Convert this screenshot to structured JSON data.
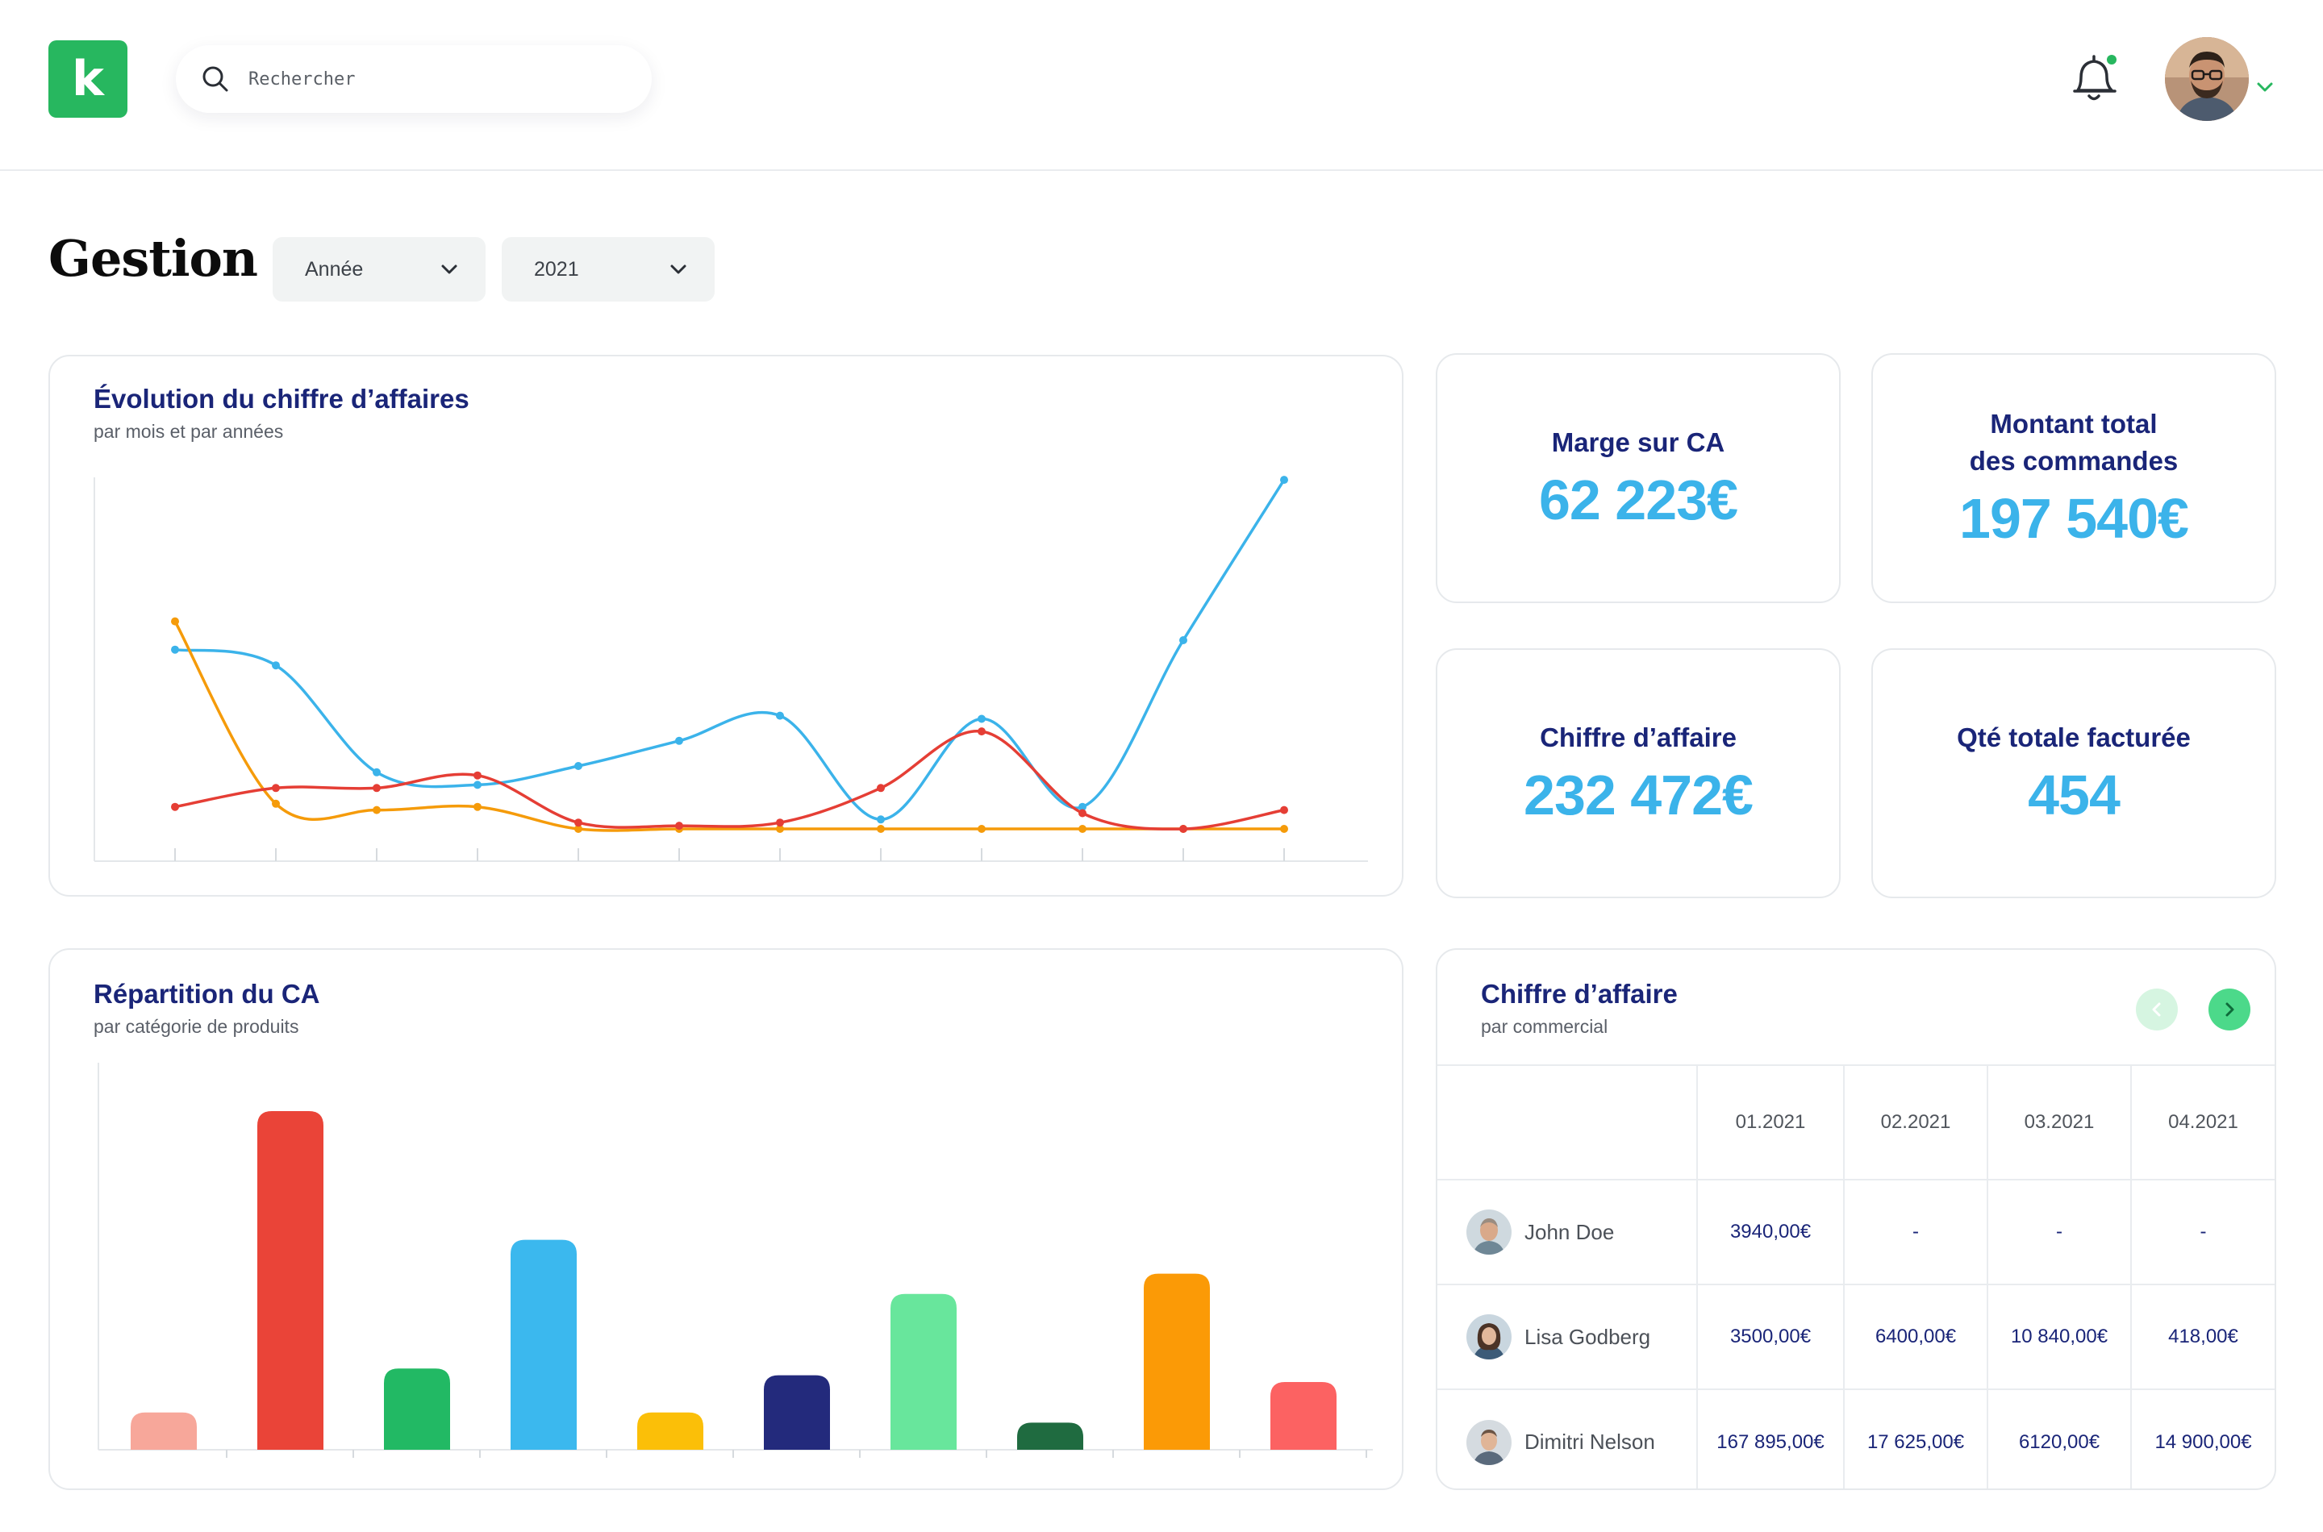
{
  "app": {
    "logo_letter": "k"
  },
  "search": {
    "placeholder": "Rechercher"
  },
  "page": {
    "title": "Gestion"
  },
  "filters": {
    "period_type": "Année",
    "year": "2021"
  },
  "kpis": [
    {
      "label_lines": [
        "Marge sur CA"
      ],
      "value": "62 223€"
    },
    {
      "label_lines": [
        "Montant total",
        "des commandes"
      ],
      "value": "197 540€"
    },
    {
      "label_lines": [
        "Chiffre d’affaire"
      ],
      "value": "232 472€"
    },
    {
      "label_lines": [
        "Qté totale facturée"
      ],
      "value": "454"
    }
  ],
  "revenue_chart": {
    "title": "Évolution du chiffre d’affaires",
    "subtitle": "par mois et par années"
  },
  "category_chart": {
    "title": "Répartition du CA",
    "subtitle": "par catégorie de produits"
  },
  "sales_table": {
    "title": "Chiffre d’affaire",
    "subtitle": "par commercial",
    "columns": [
      "01.2021",
      "02.2021",
      "03.2021",
      "04.2021"
    ],
    "rows": [
      {
        "name": "John Doe",
        "values": [
          "3940,00€",
          "-",
          "-",
          "-"
        ]
      },
      {
        "name": "Lisa Godberg",
        "values": [
          "3500,00€",
          "6400,00€",
          "10 840,00€",
          "418,00€"
        ]
      },
      {
        "name": "Dimitri Nelson",
        "values": [
          "167 895,00€",
          "17 625,00€",
          "6120,00€",
          "14 900,00€"
        ]
      }
    ]
  },
  "colors": {
    "brand": "#27b75f",
    "accent": "#3bb3ea",
    "title": "#1a2578"
  },
  "chart_data": [
    {
      "type": "line",
      "title": "Évolution du chiffre d’affaires",
      "subtitle": "par mois et par années",
      "x": [
        1,
        2,
        3,
        4,
        5,
        6,
        7,
        8,
        9,
        10,
        11,
        12
      ],
      "ylim": [
        0,
        100
      ],
      "grid": false,
      "series": [
        {
          "color": "#3bb3ea",
          "values": [
            57,
            52,
            18,
            14,
            20,
            28,
            36,
            3,
            35,
            7,
            60,
            111
          ]
        },
        {
          "color": "#f59b0a",
          "values": [
            66,
            8,
            6,
            7,
            0,
            0,
            0,
            0,
            0,
            0,
            0,
            0
          ]
        },
        {
          "color": "#e53e35",
          "values": [
            7,
            13,
            13,
            17,
            2,
            1,
            2,
            13,
            31,
            5,
            0,
            6
          ]
        }
      ]
    },
    {
      "type": "bar",
      "title": "Répartition du CA",
      "subtitle": "par catégorie de produits",
      "ylim": [
        0,
        100
      ],
      "values": [
        11,
        100,
        24,
        62,
        11,
        22,
        46,
        8,
        52,
        20
      ],
      "colors": [
        "#f7a79a",
        "#ea4438",
        "#22b964",
        "#3bb8ee",
        "#fbbf08",
        "#232a7c",
        "#68e69c",
        "#1f6b40",
        "#fb9a06",
        "#fc6262"
      ]
    }
  ]
}
